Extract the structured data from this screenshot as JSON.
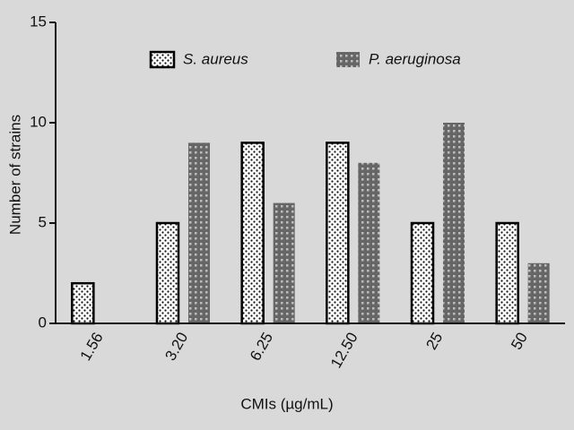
{
  "chart_data": {
    "type": "bar",
    "categories": [
      "1.56",
      "3.20",
      "6.25",
      "12.50",
      "25",
      "50"
    ],
    "series": [
      {
        "name": "S. aureus",
        "color": "#111111",
        "values": [
          2,
          5,
          9,
          9,
          5,
          5
        ]
      },
      {
        "name": "P. aeruginosa",
        "color": "#666666",
        "values": [
          0,
          9,
          6,
          8,
          10,
          3
        ]
      }
    ],
    "xlabel": "CMIs (µg/mL)",
    "ylabel": "Number of strains",
    "ylim": [
      0,
      15
    ],
    "yticks": [
      0,
      5,
      10,
      15
    ]
  }
}
